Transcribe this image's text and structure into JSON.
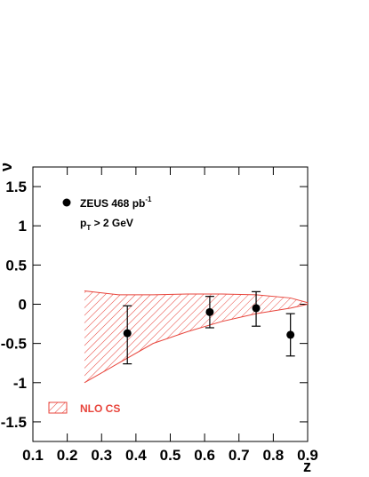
{
  "chart_data": {
    "type": "errorbar_band",
    "x_label": "z",
    "y_label": "ν",
    "xlim": [
      0.1,
      0.9
    ],
    "xticks": [
      0.1,
      0.2,
      0.3,
      0.4,
      0.5,
      0.6,
      0.7,
      0.8,
      0.9
    ],
    "ylim": [
      -1.75,
      1.75
    ],
    "yticks": [
      -1.5,
      -1,
      -0.5,
      0,
      0.5,
      1,
      1.5
    ],
    "series": [
      {
        "name": "ZEUS 468 pb",
        "name_superscript": "-1",
        "color": "#000000",
        "x": [
          0.375,
          0.615,
          0.75,
          0.85
        ],
        "values": [
          -0.37,
          -0.1,
          -0.05,
          -0.39
        ],
        "errors_plus": [
          0.35,
          0.2,
          0.21,
          0.27
        ],
        "errors_minus": [
          0.39,
          0.2,
          0.23,
          0.27
        ]
      },
      {
        "name": "NLO CS",
        "color": "#e8453c",
        "x": [
          0.25,
          0.35,
          0.45,
          0.55,
          0.65,
          0.75,
          0.85,
          0.9
        ],
        "upper": [
          0.17,
          0.12,
          0.12,
          0.13,
          0.13,
          0.12,
          0.08,
          0.02
        ],
        "lower": [
          -1.0,
          -0.75,
          -0.5,
          -0.35,
          -0.22,
          -0.12,
          -0.05,
          0.0
        ]
      }
    ],
    "annotation": {
      "text": "p",
      "subscript": "T",
      "rest": " > 2 GeV"
    }
  }
}
